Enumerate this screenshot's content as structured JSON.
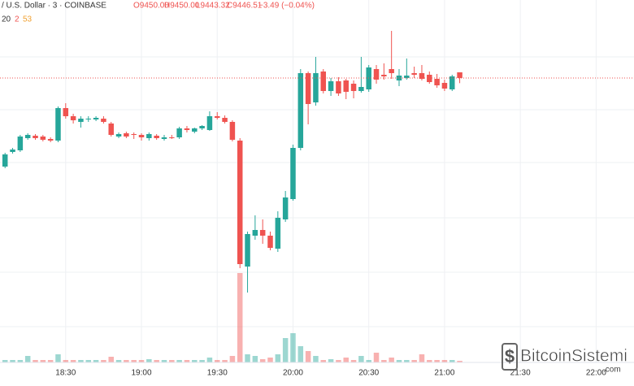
{
  "header": {
    "title": "/ U.S. Dollar · 3 · COINBASE",
    "ohlc_labels": [
      "O9450.00",
      "H9450.00",
      "L9443.32",
      "C9446.51"
    ],
    "change": "−3.49 (−0.04%)",
    "indicator": [
      "20",
      "2",
      "53"
    ]
  },
  "watermark": {
    "name": "BitcoinSistemi",
    "domain": ".com"
  },
  "chart_data": {
    "type": "candlestick",
    "x": [
      "18:06",
      "18:09",
      "18:12",
      "18:15",
      "18:18",
      "18:21",
      "18:24",
      "18:27",
      "18:30",
      "18:33",
      "18:36",
      "18:39",
      "18:42",
      "18:45",
      "18:48",
      "18:51",
      "18:54",
      "18:57",
      "19:00",
      "19:03",
      "19:06",
      "19:09",
      "19:12",
      "19:15",
      "19:18",
      "19:21",
      "19:24",
      "19:27",
      "19:30",
      "19:33",
      "19:36",
      "19:39",
      "19:42",
      "19:45",
      "19:48",
      "19:51",
      "19:54",
      "19:57",
      "20:00",
      "20:03",
      "20:06",
      "20:09",
      "20:12",
      "20:15",
      "20:18",
      "20:21",
      "20:24",
      "20:27",
      "20:30",
      "20:33",
      "20:36",
      "20:39",
      "20:42",
      "20:45",
      "20:48",
      "20:51",
      "20:54",
      "20:57",
      "21:00",
      "21:03",
      "21:06"
    ],
    "open": [
      9392,
      9401,
      9402,
      9409.5,
      9411,
      9410.5,
      9409,
      9408,
      9428,
      9423,
      9419.5,
      9421,
      9421,
      9421.5,
      9418.5,
      9410.5,
      9412.5,
      9412,
      9411.5,
      9409.5,
      9411,
      9409,
      9410,
      9410,
      9415.5,
      9413.5,
      9415.5,
      9414.5,
      9423,
      9422,
      9419.5,
      9408,
      9330.5,
      9349.5,
      9353,
      9349.5,
      9341.5,
      9359.5,
      9372,
      9403.5,
      9449.5,
      9431.5,
      9450.5,
      9438.5,
      9444.5,
      9445,
      9443,
      9438.5,
      9439.5,
      9452,
      9448.5,
      9452,
      9445,
      9446.5,
      9449.5,
      9449.5,
      9448.5,
      9446,
      9443.5,
      9439.5,
      9450
    ],
    "high": [
      9400.5,
      9403.5,
      9411.5,
      9412.5,
      9412,
      9411.5,
      9410,
      9429,
      9431,
      9424.5,
      9423,
      9423,
      9423,
      9423,
      9419.5,
      9413,
      9413.5,
      9413,
      9412.5,
      9413,
      9412,
      9411.5,
      9411.5,
      9416.5,
      9417,
      9416,
      9417.5,
      9426,
      9425.5,
      9423.5,
      9420.5,
      9409.5,
      9352,
      9362,
      9359.5,
      9352,
      9364.5,
      9377,
      9405.5,
      9452,
      9450.5,
      9459.5,
      9452,
      9446.5,
      9447,
      9446,
      9445,
      9459.5,
      9454.5,
      9454.5,
      9455.5,
      9475.5,
      9452,
      9458.5,
      9453.5,
      9454.5,
      9450.5,
      9449,
      9445.5,
      9448.5,
      9450
    ],
    "low": [
      9391,
      9400,
      9401,
      9408.5,
      9408.5,
      9407.5,
      9407,
      9407,
      9421.5,
      9418.5,
      9416,
      9419.5,
      9420,
      9418.5,
      9410.5,
      9409.5,
      9409.5,
      9409,
      9408,
      9408,
      9408.5,
      9408,
      9409,
      9409,
      9413,
      9412.5,
      9414.5,
      9414,
      9421,
      9418.5,
      9407.5,
      9329.5,
      9314.5,
      9347,
      9344.5,
      9340.5,
      9339.5,
      9358,
      9371,
      9402,
      9418,
      9429.5,
      9437,
      9435.5,
      9435.5,
      9433.5,
      9434,
      9437.5,
      9438,
      9443,
      9445.5,
      9446,
      9441.5,
      9445.5,
      9446.5,
      9445,
      9443,
      9440.5,
      9438.5,
      9438.5,
      9443.32
    ],
    "close": [
      9399.5,
      9402.5,
      9410.5,
      9411.5,
      9409.5,
      9408.5,
      9408,
      9428,
      9423,
      9420.5,
      9421.5,
      9421.5,
      9422,
      9419.5,
      9411.5,
      9412,
      9410.5,
      9411.5,
      9410,
      9412,
      9409.5,
      9410,
      9409.5,
      9415.5,
      9414.5,
      9415.5,
      9417,
      9423,
      9422,
      9419.5,
      9408.5,
      9332,
      9350.5,
      9353,
      9349.5,
      9342,
      9360.5,
      9373,
      9403.5,
      9449.5,
      9430.5,
      9449.5,
      9438.5,
      9444.5,
      9437,
      9438,
      9438.5,
      9441,
      9453,
      9445.5,
      9447.5,
      9449.5,
      9448,
      9448,
      9448.5,
      9446,
      9444,
      9442,
      9440,
      9447.5,
      9446.51
    ],
    "volume": [
      3,
      3,
      3,
      8,
      3,
      3,
      3,
      10,
      3,
      3,
      3,
      3,
      3,
      3,
      7,
      3,
      3,
      3,
      3,
      4,
      3,
      3,
      3,
      3,
      3,
      3,
      3,
      6,
      3,
      3,
      8,
      110,
      10,
      8,
      4,
      6,
      10,
      30,
      36,
      20,
      14,
      8,
      3,
      4,
      3,
      6,
      3,
      8,
      3,
      12,
      3,
      6,
      3,
      3,
      3,
      10,
      3,
      3,
      3,
      3,
      2
    ],
    "up_color": "#26a69a",
    "down_color": "#ef5350",
    "xlim": [
      "18:04",
      "22:15"
    ],
    "xticks": [
      "18:30",
      "19:00",
      "19:30",
      "20:00",
      "20:30",
      "21:00",
      "21:30",
      "22:00"
    ],
    "ylim": [
      9259.5,
      9494.5
    ],
    "vlim": [
      0,
      446
    ],
    "grid": true
  }
}
